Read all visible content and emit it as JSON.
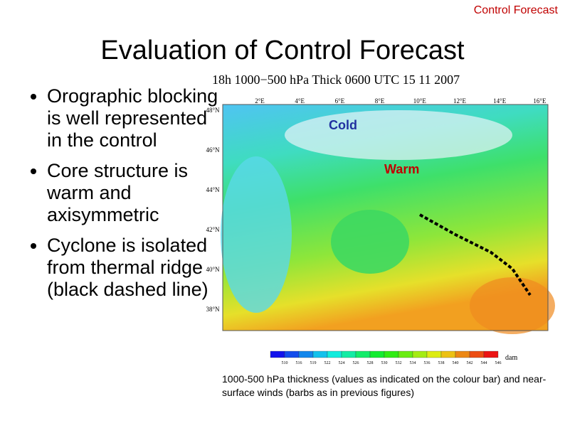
{
  "header": {
    "label": "Control Forecast"
  },
  "title": "Evaluation of Control Forecast",
  "bullets": [
    "Orographic blocking is well represented in the control",
    "Core structure is warm and axisymmetric",
    "Cyclone is isolated from thermal ridge (black dashed line)"
  ],
  "map": {
    "title": "18h 1000−500 hPa Thick 0600 UTC 15 11 2007",
    "longitudes": [
      "2°E",
      "4°E",
      "6°E",
      "8°E",
      "10°E",
      "12°E",
      "14°E",
      "16°E"
    ],
    "latitudes": [
      "48°N",
      "46°N",
      "44°N",
      "42°N",
      "40°N",
      "38°N"
    ],
    "annotations": [
      "Cold",
      "Warm"
    ],
    "colorbar": {
      "labels": [
        "510",
        "516",
        "519",
        "522",
        "524",
        "526",
        "528",
        "530",
        "532",
        "534",
        "536",
        "538",
        "540",
        "542",
        "544",
        "546"
      ],
      "unit": "dam"
    }
  },
  "caption": "1000-500 hPa thickness (values as indicated on the colour bar) and near-surface winds (barbs as in previous figures)"
}
